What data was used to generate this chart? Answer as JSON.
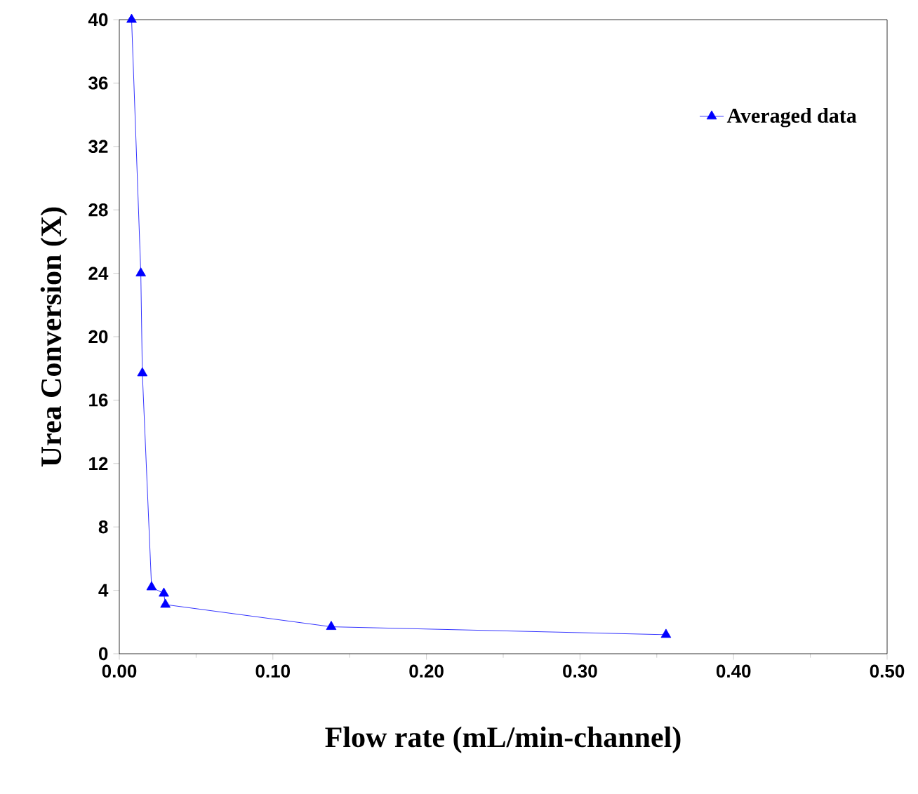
{
  "chart_data": {
    "type": "line",
    "xlabel": "Flow rate (mL/min-channel)",
    "ylabel": "Urea Conversion (X)",
    "series": [
      {
        "name": "Averaged data",
        "color": "#0000ff",
        "x": [
          0.008,
          0.014,
          0.015,
          0.021,
          0.029,
          0.03,
          0.138,
          0.356
        ],
        "values": [
          40,
          24,
          17.7,
          4.2,
          3.8,
          3.1,
          1.7,
          1.2
        ]
      }
    ],
    "xlim": [
      0,
      0.5
    ],
    "ylim": [
      0,
      40
    ],
    "xticks": [
      {
        "value": 0,
        "label": "0.00"
      },
      {
        "value": 0.1,
        "label": "0.10"
      },
      {
        "value": 0.2,
        "label": "0.20"
      },
      {
        "value": 0.3,
        "label": "0.30"
      },
      {
        "value": 0.4,
        "label": "0.40"
      },
      {
        "value": 0.5,
        "label": "0.50"
      }
    ],
    "yticks": [
      0,
      4,
      8,
      12,
      16,
      20,
      24,
      28,
      32,
      36,
      40
    ],
    "legend": "top right",
    "marker": "triangle",
    "line_style": "solid",
    "grid": false
  }
}
